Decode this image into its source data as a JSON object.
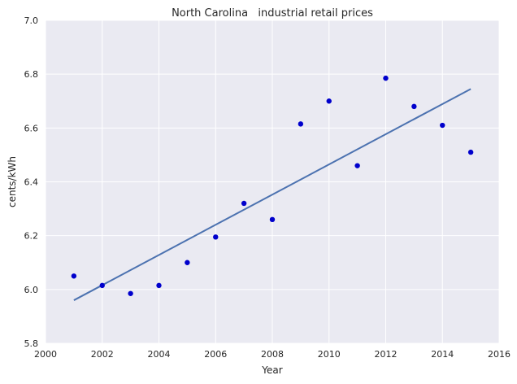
{
  "chart_data": {
    "type": "scatter",
    "title": "North Carolina   industrial retail prices",
    "xlabel": "Year",
    "ylabel": "cents/kWh",
    "xlim": [
      2000,
      2016
    ],
    "ylim": [
      5.8,
      7.0
    ],
    "xticks": [
      2000,
      2002,
      2004,
      2006,
      2008,
      2010,
      2012,
      2014,
      2016
    ],
    "xtick_labels": [
      "2000",
      "2002",
      "2004",
      "2006",
      "2008",
      "2010",
      "2012",
      "2014",
      "2016"
    ],
    "yticks": [
      5.8,
      6.0,
      6.2,
      6.4,
      6.6,
      6.8,
      7.0
    ],
    "ytick_labels": [
      "5.8",
      "6.0",
      "6.2",
      "6.4",
      "6.6",
      "6.8",
      "7.0"
    ],
    "grid": true,
    "series": [
      {
        "kind": "scatter",
        "color": "#0000cc",
        "x": [
          2001,
          2002,
          2003,
          2004,
          2005,
          2006,
          2007,
          2008,
          2009,
          2010,
          2011,
          2012,
          2013,
          2014,
          2015
        ],
        "y": [
          6.05,
          6.015,
          5.985,
          6.015,
          6.1,
          6.195,
          6.32,
          6.26,
          6.615,
          6.7,
          6.46,
          6.785,
          6.68,
          6.61,
          6.51
        ]
      },
      {
        "kind": "line",
        "color": "#4c72b0",
        "x": [
          2001,
          2015
        ],
        "y": [
          5.96,
          6.745
        ]
      }
    ],
    "style": {
      "background": "#eaeaf2",
      "grid_color": "#ffffff"
    }
  }
}
